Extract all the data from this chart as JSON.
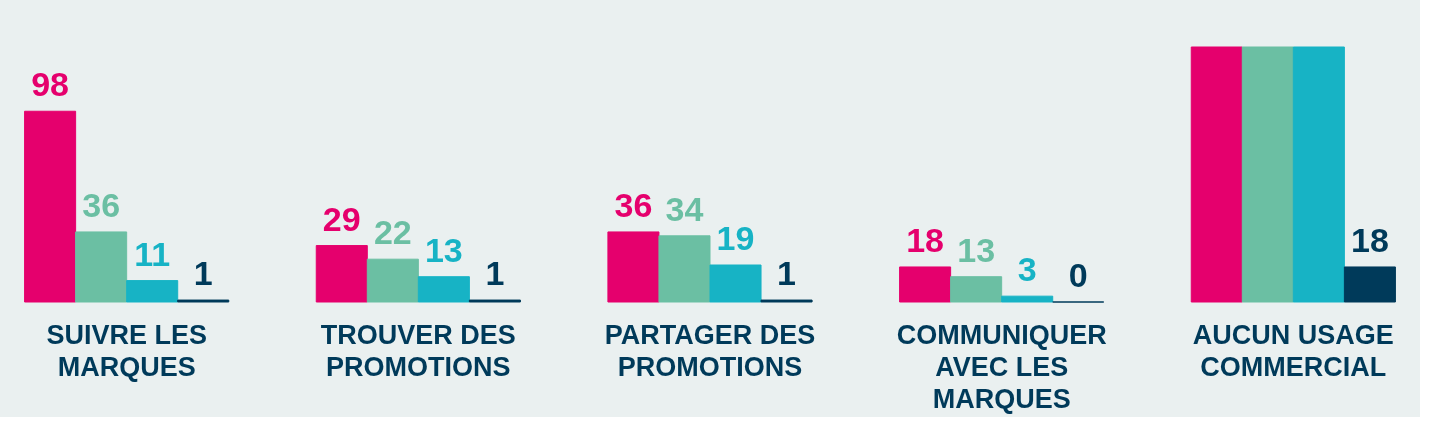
{
  "chart_data": {
    "type": "bar",
    "categories": [
      "SUIVRE LES MARQUES",
      "TROUVER DES PROMOTIONS",
      "PARTAGER DES PROMOTIONS",
      "COMMUNIQUER AVEC LES MARQUES",
      "AUCUN USAGE COMMERCIAL"
    ],
    "ylim": [
      0,
      131
    ],
    "series": [
      {
        "color": "#e5006d",
        "values": [
          98,
          29,
          36,
          18,
          131
        ],
        "value_labels": [
          "98",
          "29",
          "36",
          "18",
          null
        ]
      },
      {
        "color": "#6bbfa3",
        "values": [
          36,
          22,
          34,
          13,
          131
        ],
        "value_labels": [
          "36",
          "22",
          "34",
          "13",
          null
        ]
      },
      {
        "color": "#17b3c5",
        "values": [
          11,
          13,
          19,
          3,
          131
        ],
        "value_labels": [
          "11",
          "13",
          "19",
          "3",
          null
        ]
      },
      {
        "color": "#003a5a",
        "values": [
          1,
          1,
          1,
          0,
          18
        ],
        "value_labels": [
          "1",
          "1",
          "1",
          "0",
          "18"
        ]
      }
    ],
    "grid": false,
    "legend": false
  }
}
